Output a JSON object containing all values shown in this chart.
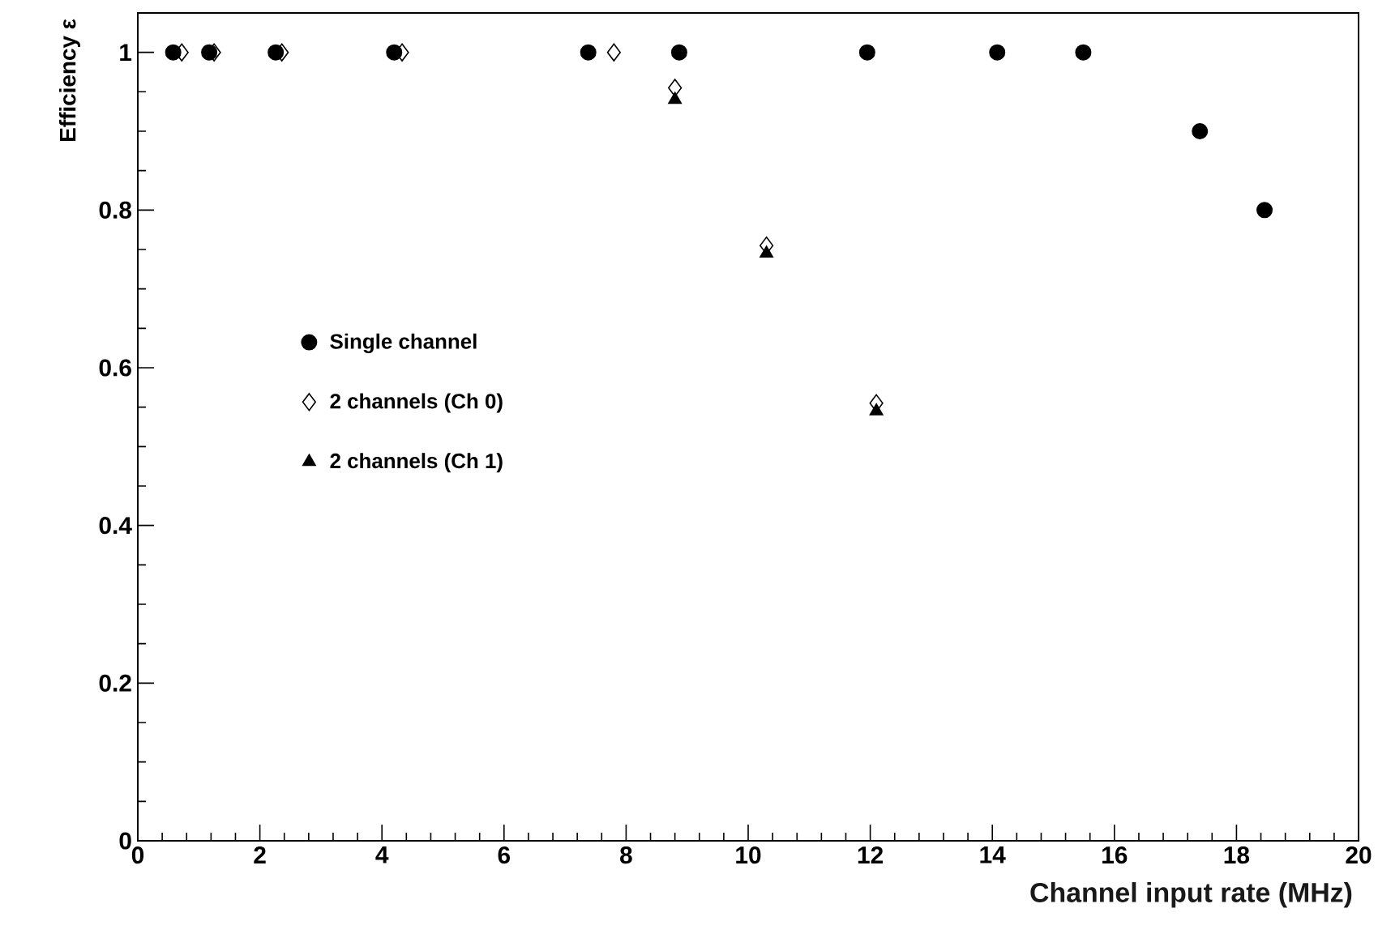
{
  "chart_data": {
    "type": "scatter",
    "xlabel": "Channel input rate (MHz)",
    "ylabel": "Efficiency ε",
    "xlim": [
      0,
      20
    ],
    "ylim": [
      0,
      1.05
    ],
    "xticks": [
      0,
      2,
      4,
      6,
      8,
      10,
      12,
      14,
      16,
      18,
      20
    ],
    "yticks": [
      0,
      0.2,
      0.4,
      0.6,
      0.8,
      1
    ],
    "grid": false,
    "legend": "left",
    "series": [
      {
        "name": "Single channel",
        "color": "#000000",
        "marker": "circle",
        "x": [
          0.58,
          1.17,
          2.26,
          4.2,
          7.38,
          8.87,
          11.95,
          14.08,
          15.49,
          17.4,
          18.46
        ],
        "values": [
          1,
          1,
          1,
          1,
          1,
          1,
          1,
          1,
          1,
          0.9,
          0.8
        ]
      },
      {
        "name": "2 channels (Ch 0)",
        "color": "#000000",
        "marker": "diamond",
        "x": [
          0.72,
          1.25,
          2.36,
          4.33,
          7.8,
          8.8,
          10.3,
          12.1
        ],
        "values": [
          1,
          1,
          1,
          1,
          1,
          0.955,
          0.755,
          0.555
        ]
      },
      {
        "name": "2 channels (Ch 1)",
        "color": "#000000",
        "marker": "triangle",
        "x": [
          8.8,
          10.3,
          12.1
        ],
        "values": [
          0.94,
          0.745,
          0.545
        ]
      }
    ]
  }
}
